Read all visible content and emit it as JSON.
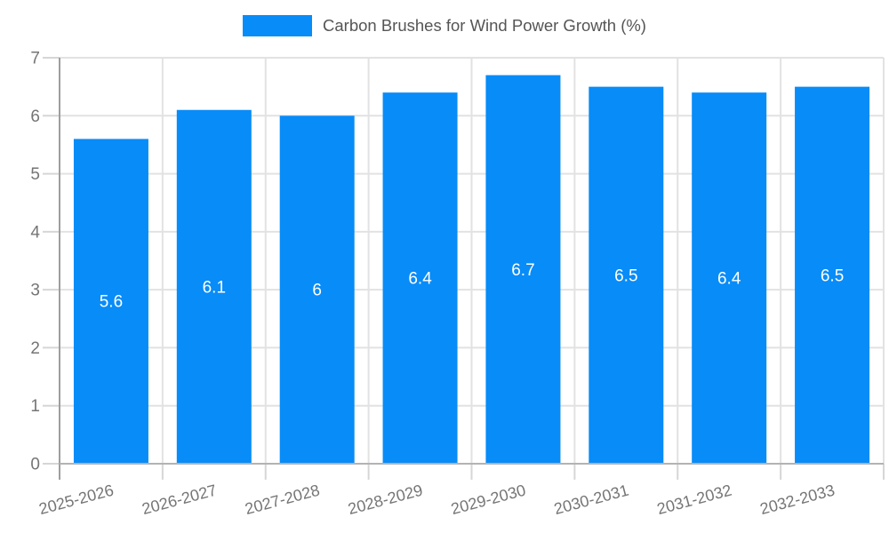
{
  "chart_data": {
    "type": "bar",
    "title": "Carbon Brushes for Wind Power Growth (%)",
    "legend": {
      "position": "top",
      "label": "Carbon Brushes for Wind Power Growth (%)"
    },
    "categories": [
      "2025-2026",
      "2026-2027",
      "2027-2028",
      "2028-2029",
      "2029-2030",
      "2030-2031",
      "2031-2032",
      "2032-2033"
    ],
    "series": [
      {
        "name": "Carbon Brushes for Wind Power Growth (%)",
        "values": [
          5.6,
          6.1,
          6,
          6.4,
          6.7,
          6.5,
          6.4,
          6.5
        ]
      }
    ],
    "value_labels_shown": true,
    "xlabel": "",
    "ylabel": "",
    "ylim": [
      0,
      7
    ],
    "yticks": [
      0,
      1,
      2,
      3,
      4,
      5,
      6,
      7
    ],
    "grid": true,
    "x_tick_rotation_deg": -15,
    "colors": {
      "bar": "#088cf8",
      "value_label": "#ffffff",
      "grid_line": "#e2e2e2",
      "axis_line": "#9e9e9e",
      "baseline": "#b3b3b3",
      "tick_line": "#d6d6d6",
      "tick_label": "#757575",
      "legend_text": "#555555"
    }
  }
}
